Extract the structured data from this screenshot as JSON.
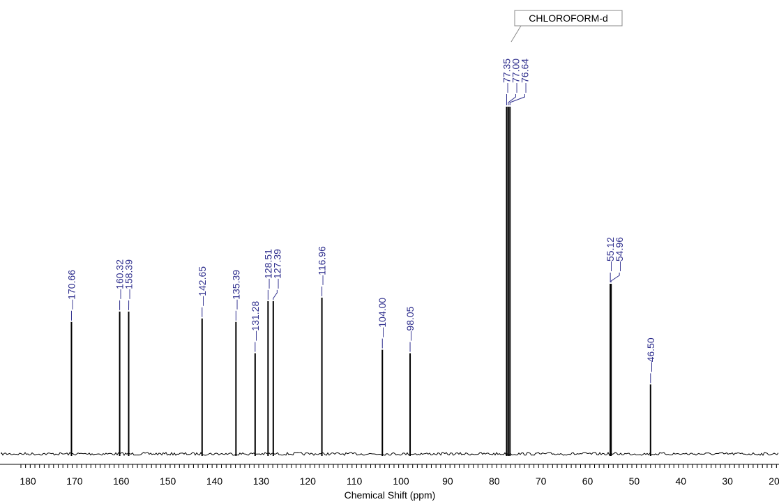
{
  "chart_data": {
    "type": "line",
    "title": "",
    "xlabel": "Chemical Shift (ppm)",
    "ylabel": "",
    "xlim": [
      181.5,
      19.5
    ],
    "x_reversed": true,
    "grid": false,
    "x_ticks": [
      180,
      170,
      160,
      150,
      140,
      130,
      120,
      110,
      100,
      90,
      80,
      70,
      60,
      50,
      40,
      30,
      20
    ],
    "solvent_label": "CHLOROFORM-d",
    "peaks": [
      {
        "label": "170.66",
        "x": 170.66,
        "y": 0.38
      },
      {
        "label": "160.32",
        "x": 160.32,
        "y": 0.41
      },
      {
        "label": "158.39",
        "x": 158.39,
        "y": 0.41
      },
      {
        "label": "142.65",
        "x": 142.65,
        "y": 0.39
      },
      {
        "label": "135.39",
        "x": 135.39,
        "y": 0.38
      },
      {
        "label": "131.28",
        "x": 131.28,
        "y": 0.29
      },
      {
        "label": "128.51",
        "x": 128.51,
        "y": 0.44
      },
      {
        "label": "127.39",
        "x": 127.39,
        "y": 0.44
      },
      {
        "label": "116.96",
        "x": 116.96,
        "y": 0.45
      },
      {
        "label": "104.00",
        "x": 104.0,
        "y": 0.3
      },
      {
        "label": "98.05",
        "x": 98.05,
        "y": 0.29
      },
      {
        "label": "77.35",
        "x": 77.35,
        "y": 1.0
      },
      {
        "label": "77.00",
        "x": 77.0,
        "y": 1.0
      },
      {
        "label": "76.64",
        "x": 76.64,
        "y": 1.0
      },
      {
        "label": "55.12",
        "x": 55.12,
        "y": 0.49
      },
      {
        "label": "54.96",
        "x": 54.96,
        "y": 0.49
      },
      {
        "label": "46.50",
        "x": 46.5,
        "y": 0.2
      }
    ]
  }
}
